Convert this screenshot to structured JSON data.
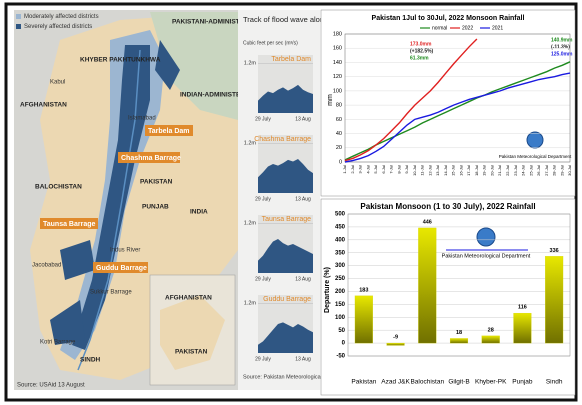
{
  "map": {
    "legend": [
      "Moderately affected districts",
      "Severely affected districts"
    ],
    "labels": [
      "PAKISTANI-ADMINISTERED KASHMIR",
      "KHYBER PAKHTUNKHWA",
      "Kabul",
      "AFGHANISTAN",
      "Islamabad",
      "INDIAN-ADMINISTERED KASHMIR",
      "BALOCHISTAN",
      "PAKISTAN",
      "PUNJAB",
      "INDIA",
      "Jacobabad",
      "Sukkur Barrage",
      "Kotri Barrage",
      "SINDH",
      "Indus River",
      "AFGHANISTAN",
      "PAKISTAN"
    ],
    "barrages": [
      "Tarbela Dam",
      "Chashma Barrage",
      "Taunsa Barrage",
      "Guddu Barrage"
    ],
    "source": "Source: USAid 13 August"
  },
  "flood_wave": {
    "title": "Track of flood wave along Indus River",
    "unit": "Cubic feet per sec (m³/s)",
    "source": "Source: Pakistan Meteorological Department",
    "panels": [
      {
        "name": "Tarbela Dam",
        "values": [
          300000,
          420000,
          520000,
          480000,
          560000,
          620000,
          540000,
          600000,
          680000,
          560000,
          500000,
          460000
        ]
      },
      {
        "name": "Chashma Barrage",
        "values": [
          380000,
          500000,
          640000,
          700000,
          660000,
          720000,
          800000,
          760000,
          820000,
          700000,
          560000,
          480000
        ]
      },
      {
        "name": "Taunsa Barrage",
        "values": [
          300000,
          420000,
          600000,
          760000,
          820000,
          720000,
          660000,
          700000,
          640000,
          580000,
          520000,
          460000
        ]
      },
      {
        "name": "Guddu Barrage",
        "values": [
          200000,
          280000,
          420000,
          560000,
          700000,
          740000,
          680000,
          620000,
          700000,
          640000,
          560000,
          500000
        ]
      }
    ],
    "categories": [
      null,
      "29 July",
      null,
      null,
      null,
      null,
      null,
      null,
      null,
      "13 Aug",
      null,
      null
    ],
    "ylim": [
      0,
      1400000
    ],
    "yticks": [
      {
        "value": 1200000,
        "label": "1.2m"
      }
    ],
    "color": "#2f5683"
  },
  "chart_data": [
    {
      "type": "line",
      "title": "Pakistan 1Jul to 30Jul, 2022 Monsoon Rainfall",
      "y_label": "mm",
      "categories": [
        "1-Jul",
        "2-Jul",
        "3-Jul",
        "4-Jul",
        "5-Jul",
        "6-Jul",
        "7-Jul",
        "8-Jul",
        "9-Jul",
        "10-Jul",
        "11-Jul",
        "12-Jul",
        "13-Jul",
        "14-Jul",
        "15-Jul",
        "16-Jul",
        "17-Jul",
        "18-Jul",
        "19-Jul",
        "20-Jul",
        "21-Jul",
        "22-Jul",
        "23-Jul",
        "24-Jul",
        "25-Jul",
        "26-Jul",
        "27-Jul",
        "28-Jul",
        "29-Jul",
        "30-Jul"
      ],
      "series": [
        {
          "name": "normal",
          "color": "#1e8a1e",
          "values": [
            3,
            8,
            13,
            18,
            24,
            29,
            34,
            39,
            44,
            49,
            55,
            60,
            65,
            70,
            75,
            80,
            85,
            90,
            94,
            99,
            103,
            107,
            111,
            115,
            119,
            123,
            127,
            132,
            136,
            140.9
          ]
        },
        {
          "name": "2022",
          "color": "#e02020",
          "values": [
            2,
            5,
            10,
            16,
            24,
            33,
            44,
            55,
            68,
            80,
            90,
            100,
            112,
            125,
            138,
            150,
            162,
            173.0,
            null,
            null,
            null,
            null,
            null,
            null,
            null,
            null,
            null,
            null,
            null,
            null
          ]
        },
        {
          "name": "2021",
          "color": "#1a1ae0",
          "values": [
            0,
            2,
            5,
            9,
            15,
            22,
            32,
            42,
            52,
            60,
            63,
            66,
            70,
            75,
            80,
            84,
            88,
            91,
            94,
            97,
            100,
            104,
            107,
            110,
            113,
            116,
            118,
            120,
            123,
            125.0
          ]
        }
      ],
      "annotations": [
        "173.0mm",
        "(+182.5%)",
        "61.3mm",
        "140.9mm",
        "(-11.3%)",
        "125.0mm",
        "Pakistan Meteorological Department"
      ],
      "ylim": [
        0,
        180
      ],
      "yticks": [
        0,
        20,
        40,
        60,
        80,
        100,
        120,
        140,
        160,
        180
      ],
      "grid": true,
      "legend": "top"
    },
    {
      "type": "bar",
      "title": "Pakistan Monsoon (1 to 30 July), 2022 Rainfall",
      "y_label": "Departure (%)",
      "categories": [
        "Pakistan",
        "Azad J&K",
        "Balochistan",
        "Gilgit-B",
        "Khyber-PK",
        "Punjab",
        "Sindh"
      ],
      "values": [
        183,
        -9,
        446,
        18,
        28,
        116,
        336
      ],
      "color": "#d4d400",
      "annotations": [
        "Pakistan Meteorological Department"
      ],
      "ylim": [
        -50,
        500
      ],
      "yticks": [
        -50,
        0,
        50,
        100,
        150,
        200,
        250,
        300,
        350,
        400,
        450,
        500
      ],
      "grid": true
    }
  ]
}
